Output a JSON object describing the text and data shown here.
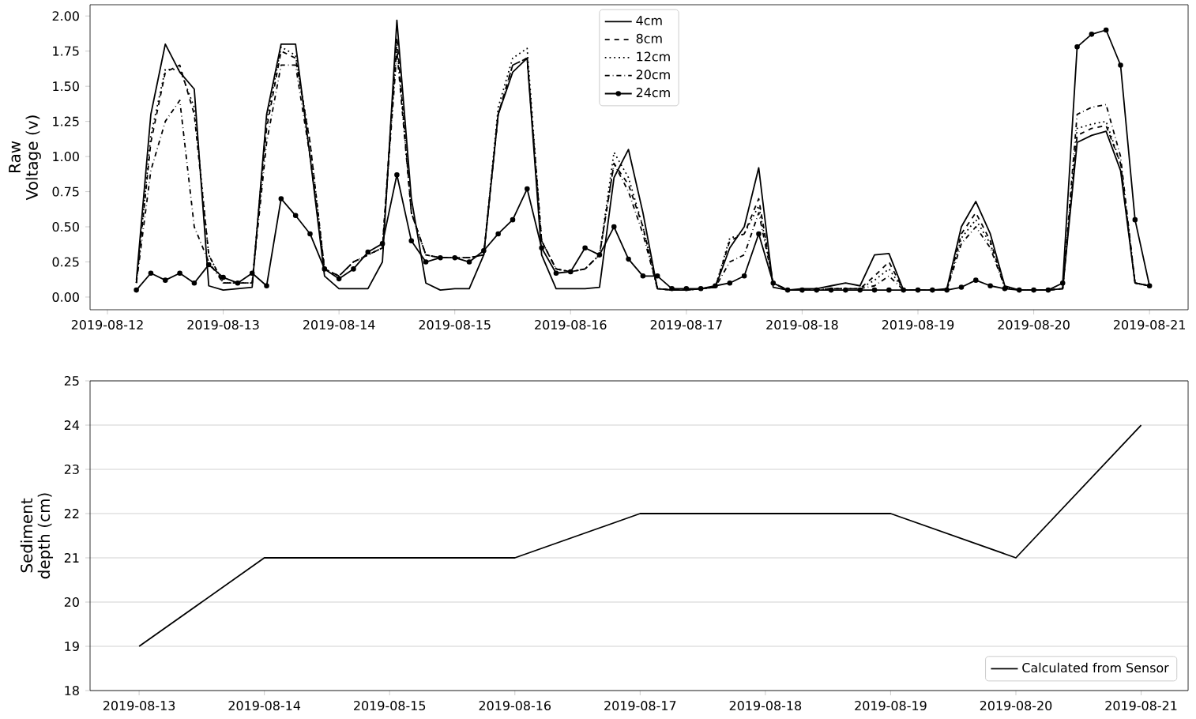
{
  "chart_data": [
    {
      "type": "line",
      "ylabel": "Raw Voltage (v)",
      "legend": "top",
      "x": [
        "2019-08-12T06:00",
        "2019-08-12T09:00",
        "2019-08-12T12:00",
        "2019-08-12T15:00",
        "2019-08-12T18:00",
        "2019-08-12T21:00",
        "2019-08-13T00:00",
        "2019-08-13T03:00",
        "2019-08-13T06:00",
        "2019-08-13T09:00",
        "2019-08-13T12:00",
        "2019-08-13T15:00",
        "2019-08-13T18:00",
        "2019-08-13T21:00",
        "2019-08-14T00:00",
        "2019-08-14T03:00",
        "2019-08-14T06:00",
        "2019-08-14T09:00",
        "2019-08-14T12:00",
        "2019-08-14T15:00",
        "2019-08-14T18:00",
        "2019-08-14T21:00",
        "2019-08-15T00:00",
        "2019-08-15T03:00",
        "2019-08-15T06:00",
        "2019-08-15T09:00",
        "2019-08-15T12:00",
        "2019-08-15T15:00",
        "2019-08-15T18:00",
        "2019-08-15T21:00",
        "2019-08-16T00:00",
        "2019-08-16T03:00",
        "2019-08-16T06:00",
        "2019-08-16T09:00",
        "2019-08-16T12:00",
        "2019-08-16T15:00",
        "2019-08-16T18:00",
        "2019-08-16T21:00",
        "2019-08-17T00:00",
        "2019-08-17T03:00",
        "2019-08-17T06:00",
        "2019-08-17T09:00",
        "2019-08-17T12:00",
        "2019-08-17T15:00",
        "2019-08-17T18:00",
        "2019-08-17T21:00",
        "2019-08-18T00:00",
        "2019-08-18T03:00",
        "2019-08-18T06:00",
        "2019-08-18T09:00",
        "2019-08-18T12:00",
        "2019-08-18T15:00",
        "2019-08-18T18:00",
        "2019-08-18T21:00",
        "2019-08-19T00:00",
        "2019-08-19T03:00",
        "2019-08-19T06:00",
        "2019-08-19T09:00",
        "2019-08-19T12:00",
        "2019-08-19T15:00",
        "2019-08-19T18:00",
        "2019-08-19T21:00",
        "2019-08-20T00:00",
        "2019-08-20T03:00",
        "2019-08-20T06:00",
        "2019-08-20T09:00",
        "2019-08-20T12:00",
        "2019-08-20T15:00",
        "2019-08-20T18:00",
        "2019-08-20T21:00",
        "2019-08-21T00:00"
      ],
      "xlim": [
        "2019-08-11T20:24",
        "2019-08-21T08:00"
      ],
      "xticks": [
        "2019-08-12",
        "2019-08-13",
        "2019-08-14",
        "2019-08-15",
        "2019-08-16",
        "2019-08-17",
        "2019-08-18",
        "2019-08-19",
        "2019-08-20",
        "2019-08-21"
      ],
      "ylim": [
        -0.09,
        2.08
      ],
      "yticks": [
        {
          "value": 0,
          "label": "0.00"
        },
        {
          "value": 0.25,
          "label": "0.25"
        },
        {
          "value": 0.5,
          "label": "0.50"
        },
        {
          "value": 0.75,
          "label": "0.75"
        },
        {
          "value": 1,
          "label": "1.00"
        },
        {
          "value": 1.25,
          "label": "1.25"
        },
        {
          "value": 1.5,
          "label": "1.50"
        },
        {
          "value": 1.75,
          "label": "1.75"
        },
        {
          "value": 2,
          "label": "2.00"
        }
      ],
      "series": [
        {
          "name": "4cm",
          "color": "#000000",
          "line_style": "solid",
          "values": [
            0.12,
            1.3,
            1.8,
            1.6,
            1.48,
            0.08,
            0.05,
            0.06,
            0.07,
            1.3,
            1.8,
            1.8,
            1.0,
            0.15,
            0.06,
            0.06,
            0.06,
            0.25,
            1.97,
            0.7,
            0.1,
            0.05,
            0.06,
            0.06,
            0.3,
            1.3,
            1.6,
            1.7,
            0.3,
            0.06,
            0.06,
            0.06,
            0.07,
            0.85,
            1.05,
            0.6,
            0.06,
            0.05,
            0.05,
            0.06,
            0.07,
            0.35,
            0.5,
            0.92,
            0.07,
            0.05,
            0.06,
            0.06,
            0.08,
            0.1,
            0.08,
            0.3,
            0.31,
            0.05,
            0.05,
            0.05,
            0.06,
            0.5,
            0.68,
            0.45,
            0.08,
            0.05,
            0.05,
            0.05,
            0.06,
            1.1,
            1.15,
            1.18,
            0.9,
            0.1,
            0.08
          ]
        },
        {
          "name": "8cm",
          "color": "#000000",
          "line_style": "dashed",
          "values": [
            0.1,
            1.1,
            1.6,
            1.65,
            1.3,
            0.3,
            0.1,
            0.1,
            0.1,
            1.2,
            1.75,
            1.7,
            1.1,
            0.2,
            0.15,
            0.25,
            0.3,
            0.35,
            1.85,
            0.6,
            0.3,
            0.28,
            0.28,
            0.28,
            0.3,
            1.3,
            1.65,
            1.7,
            0.4,
            0.2,
            0.18,
            0.2,
            0.3,
            0.95,
            0.8,
            0.5,
            0.06,
            0.05,
            0.05,
            0.06,
            0.07,
            0.4,
            0.45,
            0.7,
            0.1,
            0.05,
            0.05,
            0.05,
            0.06,
            0.06,
            0.06,
            0.15,
            0.25,
            0.05,
            0.05,
            0.05,
            0.05,
            0.45,
            0.6,
            0.4,
            0.07,
            0.05,
            0.05,
            0.05,
            0.06,
            1.15,
            1.2,
            1.22,
            0.95,
            0.1,
            0.08
          ]
        },
        {
          "name": "12cm",
          "color": "#000000",
          "line_style": "dotted",
          "values": [
            0.1,
            1.15,
            1.62,
            1.62,
            1.35,
            0.3,
            0.1,
            0.1,
            0.1,
            1.25,
            1.78,
            1.72,
            1.1,
            0.2,
            0.15,
            0.25,
            0.3,
            0.35,
            1.8,
            0.6,
            0.3,
            0.28,
            0.28,
            0.28,
            0.3,
            1.35,
            1.7,
            1.77,
            0.4,
            0.2,
            0.18,
            0.2,
            0.3,
            1.03,
            0.85,
            0.5,
            0.06,
            0.05,
            0.05,
            0.06,
            0.07,
            0.42,
            0.45,
            0.65,
            0.1,
            0.05,
            0.05,
            0.05,
            0.06,
            0.06,
            0.06,
            0.12,
            0.2,
            0.05,
            0.05,
            0.05,
            0.05,
            0.42,
            0.55,
            0.38,
            0.07,
            0.05,
            0.05,
            0.05,
            0.06,
            1.2,
            1.23,
            1.25,
            0.95,
            0.1,
            0.08
          ]
        },
        {
          "name": "20cm",
          "color": "#000000",
          "line_style": "dashdot",
          "values": [
            0.1,
            0.9,
            1.25,
            1.4,
            0.5,
            0.25,
            0.1,
            0.1,
            0.1,
            1.1,
            1.65,
            1.65,
            1.0,
            0.2,
            0.15,
            0.25,
            0.3,
            0.35,
            1.75,
            0.6,
            0.3,
            0.28,
            0.28,
            0.28,
            0.3,
            1.3,
            1.65,
            1.7,
            0.4,
            0.2,
            0.18,
            0.2,
            0.3,
            0.95,
            0.75,
            0.45,
            0.06,
            0.05,
            0.05,
            0.06,
            0.07,
            0.25,
            0.3,
            0.6,
            0.1,
            0.05,
            0.05,
            0.05,
            0.06,
            0.06,
            0.06,
            0.08,
            0.15,
            0.05,
            0.05,
            0.05,
            0.05,
            0.38,
            0.5,
            0.35,
            0.07,
            0.05,
            0.05,
            0.05,
            0.06,
            1.3,
            1.35,
            1.37,
            1.0,
            0.1,
            0.08
          ]
        },
        {
          "name": "24cm",
          "color": "#000000",
          "line_style": "solid",
          "marker": "circle",
          "values": [
            0.05,
            0.17,
            0.12,
            0.17,
            0.1,
            0.23,
            0.14,
            0.1,
            0.17,
            0.08,
            0.7,
            0.58,
            0.45,
            0.2,
            0.13,
            0.2,
            0.32,
            0.38,
            0.87,
            0.4,
            0.25,
            0.28,
            0.28,
            0.25,
            0.33,
            0.45,
            0.55,
            0.77,
            0.35,
            0.17,
            0.18,
            0.35,
            0.3,
            0.5,
            0.27,
            0.15,
            0.15,
            0.06,
            0.06,
            0.06,
            0.08,
            0.1,
            0.15,
            0.45,
            0.1,
            0.05,
            0.05,
            0.05,
            0.05,
            0.05,
            0.05,
            0.05,
            0.05,
            0.05,
            0.05,
            0.05,
            0.05,
            0.07,
            0.12,
            0.08,
            0.06,
            0.05,
            0.05,
            0.05,
            0.1,
            1.78,
            1.87,
            1.9,
            1.65,
            0.55,
            0.08
          ]
        }
      ]
    },
    {
      "type": "line",
      "ylabel": "Sediment depth (cm)",
      "legend": "bottom right",
      "grid": "y",
      "x": [
        "2019-08-13",
        "2019-08-14",
        "2019-08-15",
        "2019-08-16",
        "2019-08-17",
        "2019-08-18",
        "2019-08-19",
        "2019-08-20",
        "2019-08-21"
      ],
      "xlim": [
        "2019-08-12T14:36",
        "2019-08-21T09:00"
      ],
      "xticks": [
        "2019-08-13",
        "2019-08-14",
        "2019-08-15",
        "2019-08-16",
        "2019-08-17",
        "2019-08-18",
        "2019-08-19",
        "2019-08-20",
        "2019-08-21"
      ],
      "ylim": [
        18,
        25
      ],
      "yticks": [
        18,
        19,
        20,
        21,
        22,
        23,
        24,
        25
      ],
      "series": [
        {
          "name": "Calculated from Sensor",
          "color": "#000000",
          "line_style": "solid",
          "values": [
            19,
            21,
            21,
            21,
            22,
            22,
            22,
            21,
            24
          ]
        }
      ]
    }
  ]
}
